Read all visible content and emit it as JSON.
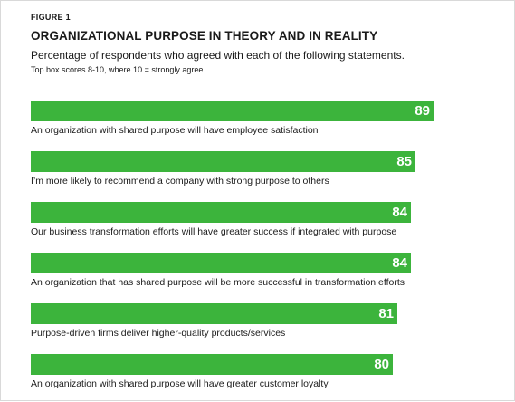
{
  "figure_label": "FIGURE 1",
  "chart_data": {
    "type": "bar",
    "orientation": "horizontal",
    "title": "ORGANIZATIONAL PURPOSE IN THEORY AND IN REALITY",
    "subtitle": "Percentage of respondents who agreed with each of the following statements.",
    "note": "Top box scores 8-10, where 10 = strongly agree.",
    "categories": [
      "An organization with shared purpose will have employee satisfaction",
      "I’m more likely to recommend a company with strong purpose to others",
      "Our business transformation efforts will have greater success if integrated with purpose",
      "An organization that has shared purpose will be more successful in transformation efforts",
      "Purpose-driven firms deliver higher-quality products/services",
      "An organization with shared purpose will have greater customer loyalty"
    ],
    "values": [
      89,
      85,
      84,
      84,
      81,
      80
    ],
    "xlim": [
      0,
      100
    ],
    "grid": false,
    "bar_color": "#3cb43c",
    "value_label_color": "#ffffff"
  }
}
